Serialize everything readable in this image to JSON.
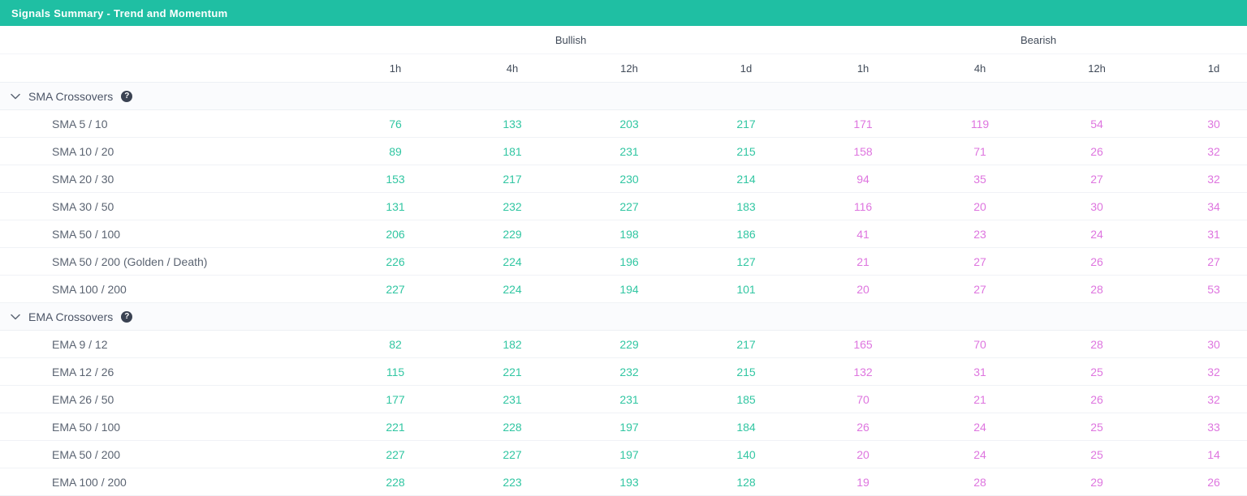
{
  "title_bar": {
    "title": "Signals Summary - Trend and Momentum"
  },
  "colors": {
    "header_teal": "#1FBFA3",
    "bullish_value": "#31C6A2",
    "bearish_value": "#DE75DF"
  },
  "icons": {
    "help": "?",
    "chevron": "chevron-down"
  },
  "table": {
    "group_headers": [
      {
        "label": "Bullish"
      },
      {
        "label": "Bearish"
      }
    ],
    "timeframes": [
      "1h",
      "4h",
      "12h",
      "1d"
    ],
    "sections": [
      {
        "label": "SMA Crossovers",
        "rows": [
          {
            "label": "SMA 5 / 10",
            "bullish": [
              76,
              133,
              203,
              217
            ],
            "bearish": [
              171,
              119,
              54,
              30
            ]
          },
          {
            "label": "SMA 10 / 20",
            "bullish": [
              89,
              181,
              231,
              215
            ],
            "bearish": [
              158,
              71,
              26,
              32
            ]
          },
          {
            "label": "SMA 20 / 30",
            "bullish": [
              153,
              217,
              230,
              214
            ],
            "bearish": [
              94,
              35,
              27,
              32
            ]
          },
          {
            "label": "SMA 30 / 50",
            "bullish": [
              131,
              232,
              227,
              183
            ],
            "bearish": [
              116,
              20,
              30,
              34
            ]
          },
          {
            "label": "SMA 50 / 100",
            "bullish": [
              206,
              229,
              198,
              186
            ],
            "bearish": [
              41,
              23,
              24,
              31
            ]
          },
          {
            "label": "SMA 50 / 200 (Golden / Death)",
            "bullish": [
              226,
              224,
              196,
              127
            ],
            "bearish": [
              21,
              27,
              26,
              27
            ]
          },
          {
            "label": "SMA 100 / 200",
            "bullish": [
              227,
              224,
              194,
              101
            ],
            "bearish": [
              20,
              27,
              28,
              53
            ]
          }
        ]
      },
      {
        "label": "EMA Crossovers",
        "rows": [
          {
            "label": "EMA 9 / 12",
            "bullish": [
              82,
              182,
              229,
              217
            ],
            "bearish": [
              165,
              70,
              28,
              30
            ]
          },
          {
            "label": "EMA 12 / 26",
            "bullish": [
              115,
              221,
              232,
              215
            ],
            "bearish": [
              132,
              31,
              25,
              32
            ]
          },
          {
            "label": "EMA 26 / 50",
            "bullish": [
              177,
              231,
              231,
              185
            ],
            "bearish": [
              70,
              21,
              26,
              32
            ]
          },
          {
            "label": "EMA 50 / 100",
            "bullish": [
              221,
              228,
              197,
              184
            ],
            "bearish": [
              26,
              24,
              25,
              33
            ]
          },
          {
            "label": "EMA 50 / 200",
            "bullish": [
              227,
              227,
              197,
              140
            ],
            "bearish": [
              20,
              24,
              25,
              14
            ]
          },
          {
            "label": "EMA 100 / 200",
            "bullish": [
              228,
              223,
              193,
              128
            ],
            "bearish": [
              19,
              28,
              29,
              26
            ]
          }
        ]
      }
    ]
  }
}
